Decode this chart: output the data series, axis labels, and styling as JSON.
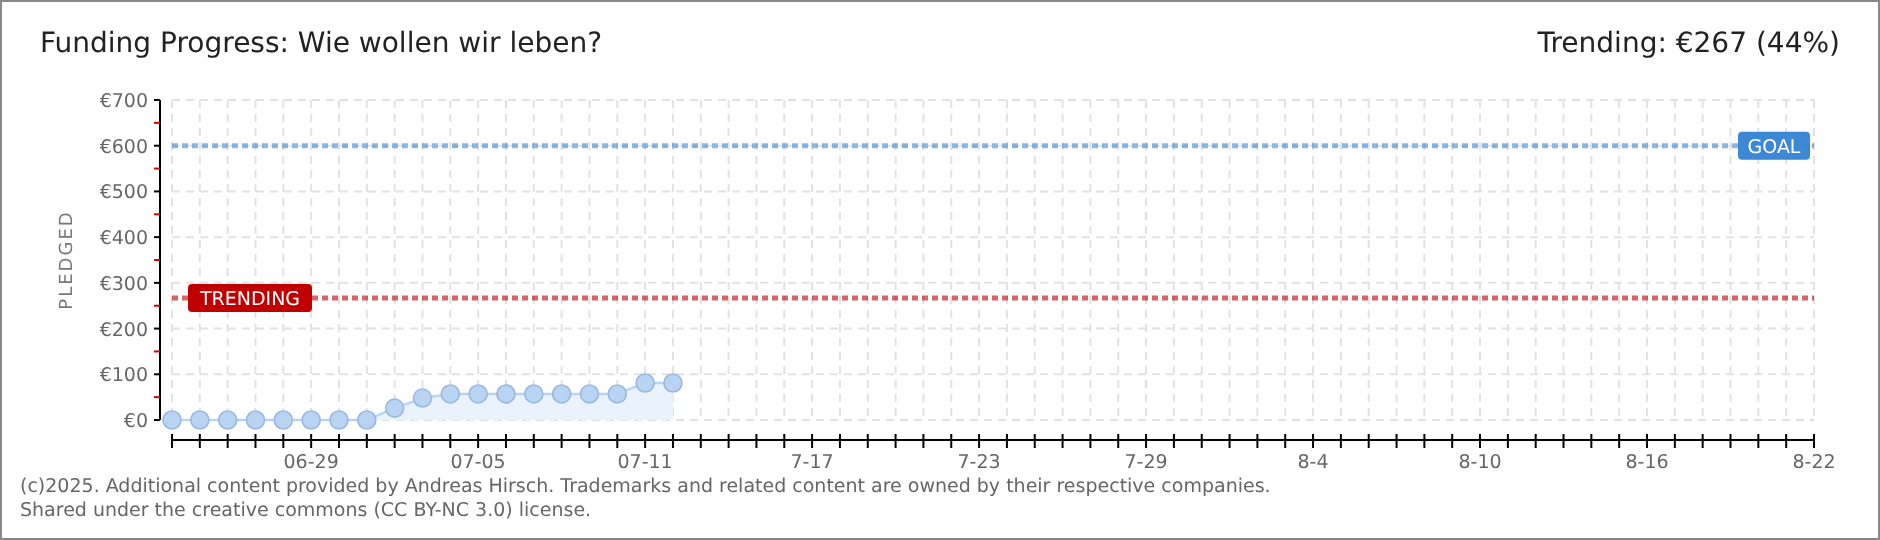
{
  "chart_data": {
    "type": "area",
    "title": "Funding Progress: Wie wollen wir leben?",
    "subtitle": "Trending: €267 (44%)",
    "ylabel": "PLEDGED",
    "x": [
      "2025-06-24",
      "2025-06-25",
      "2025-06-26",
      "2025-06-27",
      "2025-06-28",
      "2025-06-29",
      "2025-06-30",
      "2025-07-01",
      "2025-07-02",
      "2025-07-03",
      "2025-07-04",
      "2025-07-05",
      "2025-07-06",
      "2025-07-07",
      "2025-07-08",
      "2025-07-09",
      "2025-07-10",
      "2025-07-11",
      "2025-07-12"
    ],
    "series": [
      {
        "color": "#b9d3f2",
        "values": [
          0,
          0,
          0,
          0,
          0,
          0,
          0,
          0,
          26,
          48,
          57,
          57,
          57,
          57,
          57,
          57,
          57,
          81,
          81
        ]
      }
    ],
    "marker": "circle",
    "xlim": [
      "2025-06-24",
      "2025-08-22"
    ],
    "xticks": [
      {
        "value": "2025-06-24",
        "label": null
      },
      {
        "value": "2025-06-25",
        "label": null
      },
      {
        "value": "2025-06-26",
        "label": null
      },
      {
        "value": "2025-06-27",
        "label": null
      },
      {
        "value": "2025-06-28",
        "label": null
      },
      {
        "value": "2025-06-29",
        "label": "06-29"
      },
      {
        "value": "2025-06-30",
        "label": null
      },
      {
        "value": "2025-07-01",
        "label": null
      },
      {
        "value": "2025-07-02",
        "label": null
      },
      {
        "value": "2025-07-03",
        "label": null
      },
      {
        "value": "2025-07-04",
        "label": null
      },
      {
        "value": "2025-07-05",
        "label": "07-05"
      },
      {
        "value": "2025-07-06",
        "label": null
      },
      {
        "value": "2025-07-07",
        "label": null
      },
      {
        "value": "2025-07-08",
        "label": null
      },
      {
        "value": "2025-07-09",
        "label": null
      },
      {
        "value": "2025-07-10",
        "label": null
      },
      {
        "value": "2025-07-11",
        "label": "07-11"
      },
      {
        "value": "2025-07-12",
        "label": null
      },
      {
        "value": "2025-07-13",
        "label": null
      },
      {
        "value": "2025-07-14",
        "label": null
      },
      {
        "value": "2025-07-15",
        "label": null
      },
      {
        "value": "2025-07-16",
        "label": null
      },
      {
        "value": "2025-07-17",
        "label": "7-17"
      },
      {
        "value": "2025-07-18",
        "label": null
      },
      {
        "value": "2025-07-19",
        "label": null
      },
      {
        "value": "2025-07-20",
        "label": null
      },
      {
        "value": "2025-07-21",
        "label": null
      },
      {
        "value": "2025-07-22",
        "label": null
      },
      {
        "value": "2025-07-23",
        "label": "7-23"
      },
      {
        "value": "2025-07-24",
        "label": null
      },
      {
        "value": "2025-07-25",
        "label": null
      },
      {
        "value": "2025-07-26",
        "label": null
      },
      {
        "value": "2025-07-27",
        "label": null
      },
      {
        "value": "2025-07-28",
        "label": null
      },
      {
        "value": "2025-07-29",
        "label": "7-29"
      },
      {
        "value": "2025-07-30",
        "label": null
      },
      {
        "value": "2025-07-31",
        "label": null
      },
      {
        "value": "2025-08-01",
        "label": null
      },
      {
        "value": "2025-08-02",
        "label": null
      },
      {
        "value": "2025-08-03",
        "label": null
      },
      {
        "value": "2025-08-04",
        "label": "8-4"
      },
      {
        "value": "2025-08-05",
        "label": null
      },
      {
        "value": "2025-08-06",
        "label": null
      },
      {
        "value": "2025-08-07",
        "label": null
      },
      {
        "value": "2025-08-08",
        "label": null
      },
      {
        "value": "2025-08-09",
        "label": null
      },
      {
        "value": "2025-08-10",
        "label": "8-10"
      },
      {
        "value": "2025-08-11",
        "label": null
      },
      {
        "value": "2025-08-12",
        "label": null
      },
      {
        "value": "2025-08-13",
        "label": null
      },
      {
        "value": "2025-08-14",
        "label": null
      },
      {
        "value": "2025-08-15",
        "label": null
      },
      {
        "value": "2025-08-16",
        "label": "8-16"
      },
      {
        "value": "2025-08-17",
        "label": null
      },
      {
        "value": "2025-08-18",
        "label": null
      },
      {
        "value": "2025-08-19",
        "label": null
      },
      {
        "value": "2025-08-20",
        "label": null
      },
      {
        "value": "2025-08-21",
        "label": null
      },
      {
        "value": "2025-08-22",
        "label": "8-22"
      }
    ],
    "ylim": [
      0,
      700
    ],
    "yticks": [
      {
        "value": 0,
        "label": "€0"
      },
      {
        "value": 50,
        "label": null
      },
      {
        "value": 100,
        "label": "€100"
      },
      {
        "value": 150,
        "label": null
      },
      {
        "value": 200,
        "label": "€200"
      },
      {
        "value": 250,
        "label": null
      },
      {
        "value": 300,
        "label": "€300"
      },
      {
        "value": 350,
        "label": null
      },
      {
        "value": 400,
        "label": "€400"
      },
      {
        "value": 450,
        "label": null
      },
      {
        "value": 500,
        "label": "€500"
      },
      {
        "value": 550,
        "label": null
      },
      {
        "value": 600,
        "label": "€600"
      },
      {
        "value": 650,
        "label": null
      },
      {
        "value": 700,
        "label": "€700"
      }
    ],
    "grid": true,
    "ref_lines": [
      {
        "axis": "y",
        "value": 600,
        "label": "GOAL",
        "color": "#3d88d4",
        "line_style": "dotted"
      },
      {
        "axis": "y",
        "value": 267,
        "label": "TRENDING",
        "color": "#c00000",
        "line_style": "dotted"
      }
    ],
    "annotations": [
      "(c)2025. Additional content provided by Andreas Hirsch. Trademarks and related content are owned by their respective companies.",
      "Shared under the creative commons (CC BY-NC 3.0) license."
    ]
  }
}
